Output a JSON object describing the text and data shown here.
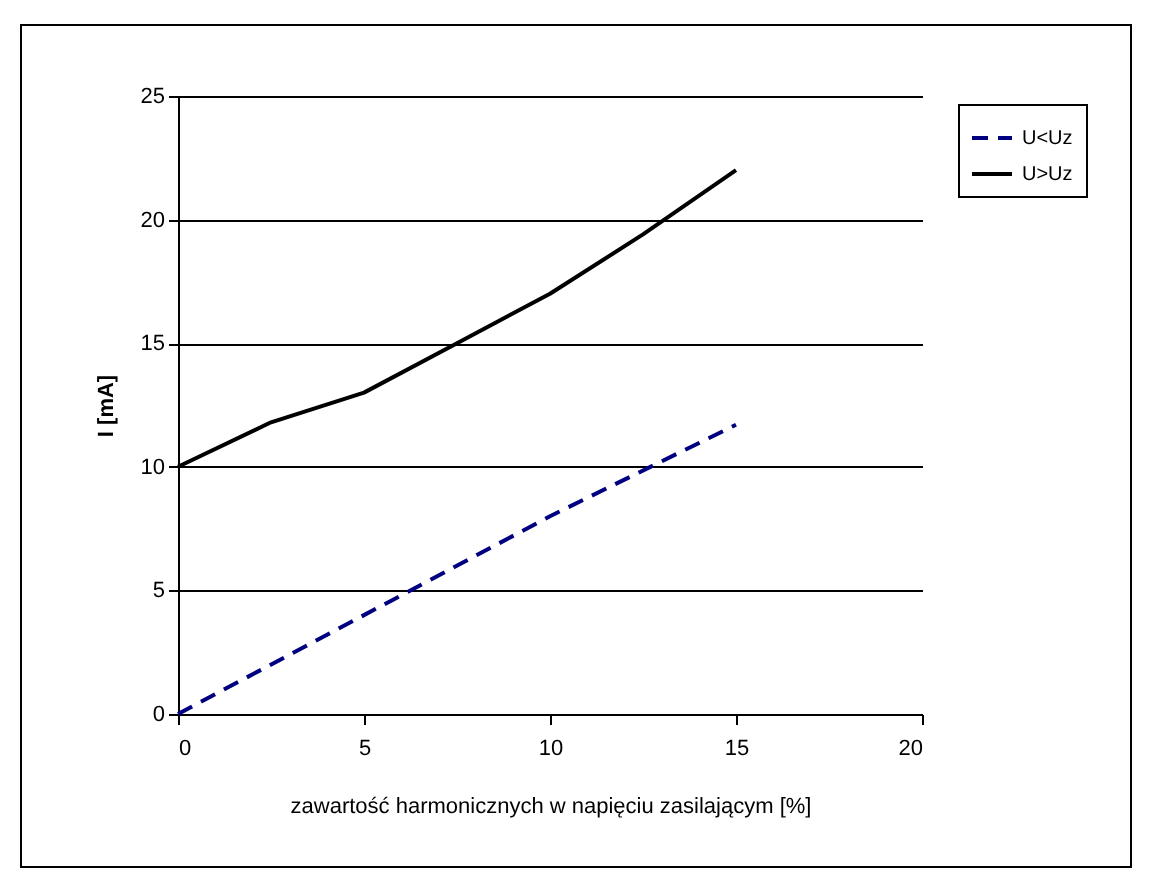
{
  "chart_data": {
    "type": "line",
    "xlabel": "zawartość harmonicznych w napięciu zasilającym [%]",
    "ylabel": "I [mA]",
    "xlim": [
      0,
      20
    ],
    "xticks": [
      0,
      5,
      10,
      15,
      20
    ],
    "ylim": [
      0,
      25
    ],
    "yticks": [
      0,
      5,
      10,
      15,
      20,
      25
    ],
    "grid": "y",
    "legend": "top right",
    "series": [
      {
        "name": "U<Uz",
        "color": "#000080",
        "line_style": "dashed",
        "x": [
          0,
          5,
          10,
          15
        ],
        "values": [
          0,
          4,
          8,
          11.7
        ]
      },
      {
        "name": "U>Uz",
        "color": "#000000",
        "line_style": "solid",
        "x": [
          0,
          2.5,
          5,
          7.5,
          10,
          12.5,
          15
        ],
        "values": [
          10,
          11.8,
          13,
          15,
          17,
          19.4,
          22
        ]
      }
    ]
  }
}
